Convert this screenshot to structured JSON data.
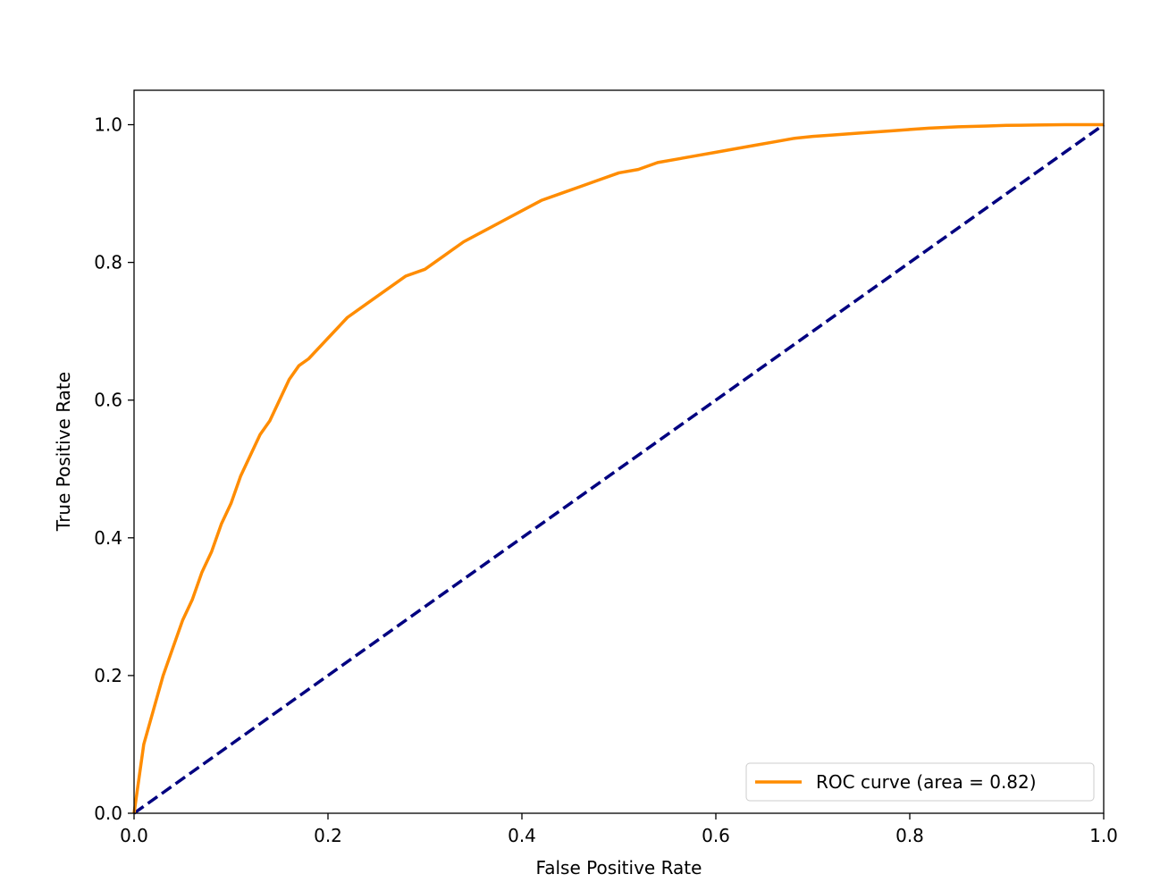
{
  "chart_data": {
    "type": "line",
    "title": "",
    "xlabel": "False Positive Rate",
    "ylabel": "True Positive Rate",
    "xlim": [
      0.0,
      1.0
    ],
    "ylim": [
      0.0,
      1.05
    ],
    "x_ticks": [
      0.0,
      0.2,
      0.4,
      0.6,
      0.8,
      1.0
    ],
    "x_tick_labels": [
      "0.0",
      "0.2",
      "0.4",
      "0.6",
      "0.8",
      "1.0"
    ],
    "y_ticks": [
      0.0,
      0.2,
      0.4,
      0.6,
      0.8,
      1.0
    ],
    "y_tick_labels": [
      "0.0",
      "0.2",
      "0.4",
      "0.6",
      "0.8",
      "1.0"
    ],
    "grid": false,
    "legend_position": "lower right",
    "series": [
      {
        "name": "ROC curve (area = 0.82)",
        "color": "#ff8c00",
        "style": "solid",
        "x": [
          0.0,
          0.005,
          0.01,
          0.02,
          0.03,
          0.04,
          0.05,
          0.06,
          0.07,
          0.08,
          0.09,
          0.1,
          0.11,
          0.12,
          0.13,
          0.14,
          0.15,
          0.16,
          0.17,
          0.18,
          0.2,
          0.22,
          0.24,
          0.26,
          0.28,
          0.3,
          0.32,
          0.34,
          0.36,
          0.38,
          0.4,
          0.42,
          0.44,
          0.46,
          0.48,
          0.5,
          0.52,
          0.54,
          0.56,
          0.58,
          0.6,
          0.62,
          0.64,
          0.66,
          0.68,
          0.7,
          0.72,
          0.75,
          0.78,
          0.8,
          0.82,
          0.85,
          0.88,
          0.9,
          0.93,
          0.96,
          0.98,
          1.0
        ],
        "y": [
          0.0,
          0.05,
          0.1,
          0.15,
          0.2,
          0.24,
          0.28,
          0.31,
          0.35,
          0.38,
          0.42,
          0.45,
          0.49,
          0.52,
          0.55,
          0.57,
          0.6,
          0.63,
          0.65,
          0.66,
          0.69,
          0.72,
          0.74,
          0.76,
          0.78,
          0.79,
          0.81,
          0.83,
          0.845,
          0.86,
          0.875,
          0.89,
          0.9,
          0.91,
          0.92,
          0.93,
          0.935,
          0.945,
          0.95,
          0.955,
          0.96,
          0.965,
          0.97,
          0.975,
          0.98,
          0.983,
          0.985,
          0.988,
          0.991,
          0.993,
          0.995,
          0.997,
          0.998,
          0.999,
          0.9995,
          1.0,
          1.0,
          1.0
        ]
      },
      {
        "name": "",
        "color": "#000080",
        "style": "dashed",
        "x": [
          0.0,
          1.0
        ],
        "y": [
          0.0,
          1.0
        ]
      }
    ]
  }
}
